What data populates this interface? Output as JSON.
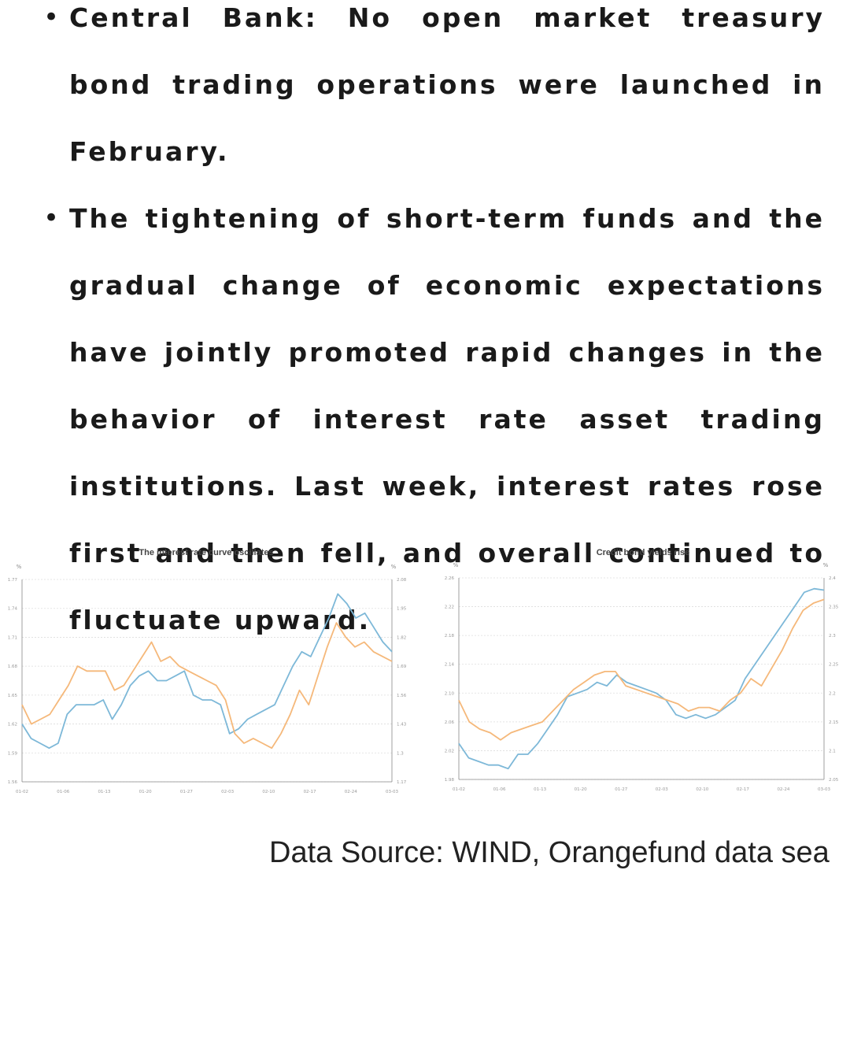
{
  "bullets": [
    {
      "text": "Central Bank: No open market treasury bond trading operations were launched in February."
    },
    {
      "text": "The tightening of short-term funds and the gradual change of economic expectations have jointly promoted rapid changes in the behavior of interest rate asset trading institutions. Last week, interest rates rose first and then fell, and overall continued to fluctuate upward."
    }
  ],
  "source_text": "Data Source: WIND, Orangefund data sea",
  "colors": {
    "blue": "#7db8d8",
    "orange": "#f5b87a",
    "grid": "#dddddd",
    "axis": "#888888"
  },
  "chart_data": [
    {
      "type": "line",
      "title": "The interest rate curve oscillates",
      "y_left_unit": "%",
      "y_right_unit": "%",
      "x_ticks": [
        "01-02",
        "01-06",
        "01-13",
        "01-20",
        "01-27",
        "02-03",
        "02-10",
        "02-17",
        "02-24",
        "03-03"
      ],
      "y_left_ticks": [
        "1.77",
        "1.74",
        "1.71",
        "1.68",
        "1.65",
        "1.62",
        "1.59",
        "1.56"
      ],
      "y_right_ticks": [
        "2.08",
        "1.95",
        "1.82",
        "1.69",
        "1.56",
        "1.43",
        "1.3",
        "1.17"
      ],
      "ylim": [
        1.56,
        1.77
      ],
      "series": [
        {
          "color": "blue",
          "values": [
            1.62,
            1.605,
            1.6,
            1.595,
            1.6,
            1.63,
            1.64,
            1.64,
            1.64,
            1.645,
            1.625,
            1.64,
            1.66,
            1.67,
            1.675,
            1.665,
            1.665,
            1.67,
            1.675,
            1.65,
            1.645,
            1.645,
            1.64,
            1.61,
            1.615,
            1.625,
            1.63,
            1.635,
            1.64,
            1.66,
            1.68,
            1.695,
            1.69,
            1.71,
            1.73,
            1.755,
            1.745,
            1.73,
            1.735,
            1.72,
            1.705,
            1.695
          ]
        },
        {
          "color": "orange",
          "values": [
            1.64,
            1.62,
            1.625,
            1.63,
            1.645,
            1.66,
            1.68,
            1.675,
            1.675,
            1.675,
            1.655,
            1.66,
            1.675,
            1.69,
            1.705,
            1.685,
            1.69,
            1.68,
            1.675,
            1.67,
            1.665,
            1.66,
            1.645,
            1.61,
            1.6,
            1.605,
            1.6,
            1.595,
            1.61,
            1.63,
            1.655,
            1.64,
            1.67,
            1.7,
            1.725,
            1.71,
            1.7,
            1.705,
            1.695,
            1.69,
            1.685
          ]
        }
      ]
    },
    {
      "type": "line",
      "title": "Credit bond yields rise",
      "y_left_unit": "%",
      "y_right_unit": "%",
      "x_ticks": [
        "01-02",
        "01-06",
        "01-13",
        "01-20",
        "01-27",
        "02-03",
        "02-10",
        "02-17",
        "02-24",
        "03-03"
      ],
      "y_left_ticks": [
        "2.26",
        "2.22",
        "2.18",
        "2.14",
        "2.10",
        "2.06",
        "2.02",
        "1.98"
      ],
      "y_right_ticks": [
        "2.4",
        "2.35",
        "2.3",
        "2.25",
        "2.2",
        "2.15",
        "2.1",
        "2.05"
      ],
      "ylim": [
        1.98,
        2.26
      ],
      "series": [
        {
          "color": "blue",
          "values": [
            2.03,
            2.01,
            2.005,
            2.0,
            2.0,
            1.995,
            2.015,
            2.015,
            2.03,
            2.05,
            2.07,
            2.095,
            2.1,
            2.105,
            2.115,
            2.11,
            2.125,
            2.115,
            2.11,
            2.105,
            2.1,
            2.09,
            2.07,
            2.065,
            2.07,
            2.065,
            2.07,
            2.08,
            2.09,
            2.12,
            2.14,
            2.16,
            2.18,
            2.2,
            2.22,
            2.24,
            2.245,
            2.243
          ]
        },
        {
          "color": "orange",
          "values": [
            2.09,
            2.06,
            2.05,
            2.045,
            2.035,
            2.045,
            2.05,
            2.055,
            2.06,
            2.075,
            2.09,
            2.105,
            2.115,
            2.125,
            2.13,
            2.13,
            2.11,
            2.105,
            2.1,
            2.095,
            2.09,
            2.085,
            2.075,
            2.08,
            2.08,
            2.075,
            2.09,
            2.1,
            2.12,
            2.11,
            2.135,
            2.16,
            2.19,
            2.215,
            2.225,
            2.23
          ]
        }
      ]
    }
  ]
}
